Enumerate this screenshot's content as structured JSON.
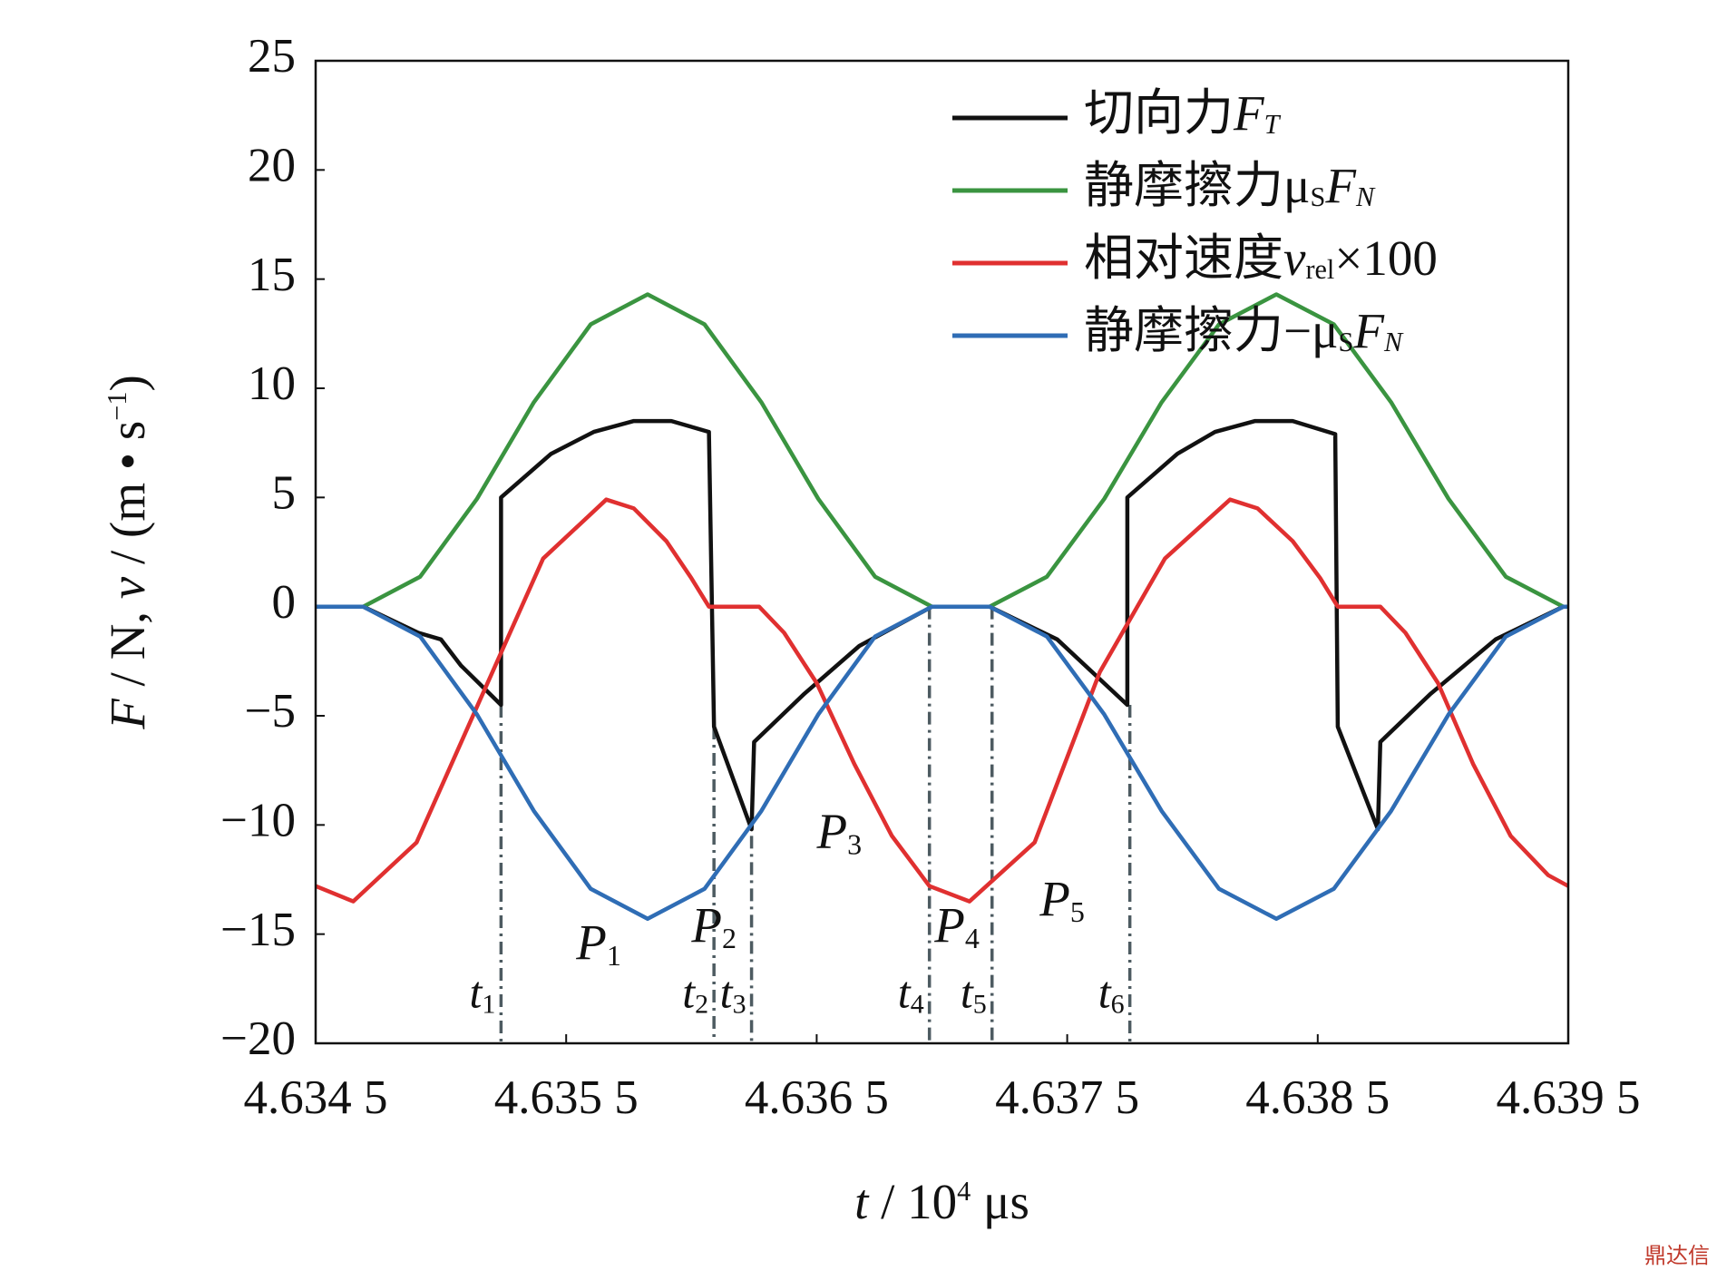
{
  "chart_data": {
    "type": "line",
    "xlabel": [
      {
        "text": "t",
        "style": "italic"
      },
      {
        "text": " / 10"
      },
      {
        "text": "4",
        "style": "sup"
      },
      {
        "text": " μs"
      }
    ],
    "ylabel": [
      {
        "text": "F",
        "style": "italic"
      },
      {
        "text": " / N, "
      },
      {
        "text": "v",
        "style": "italic"
      },
      {
        "text": " / (m • s"
      },
      {
        "text": "−1",
        "style": "sup"
      },
      {
        "text": ")"
      }
    ],
    "xlim": [
      4.6345,
      4.6395
    ],
    "ylim": [
      -20,
      25
    ],
    "xticks": [
      {
        "value": 4.6345,
        "label": "4.634 5"
      },
      {
        "value": 4.6355,
        "label": "4.635 5"
      },
      {
        "value": 4.6365,
        "label": "4.636 5"
      },
      {
        "value": 4.6375,
        "label": "4.637 5"
      },
      {
        "value": 4.6385,
        "label": "4.638 5"
      },
      {
        "value": 4.6395,
        "label": "4.639 5"
      }
    ],
    "yticks": [
      {
        "value": -20,
        "label": "−20"
      },
      {
        "value": -15,
        "label": "−15"
      },
      {
        "value": -10,
        "label": "−10"
      },
      {
        "value": -5,
        "label": "−5"
      },
      0,
      5,
      10,
      15,
      20,
      25
    ],
    "legend": "upper right",
    "series": [
      {
        "name": [
          {
            "text": "切向力"
          },
          {
            "text": "F",
            "style": "italic"
          },
          {
            "text": "T",
            "style": "sub-italic"
          }
        ],
        "color": "#111111",
        "x": [
          4.6345,
          4.63469,
          4.63491,
          4.635,
          4.63508,
          4.63524,
          4.63524,
          4.63544,
          4.63561,
          4.63577,
          4.63592,
          4.63607,
          4.63609,
          4.63624,
          4.63625,
          4.63645,
          4.63667,
          4.63696,
          4.63719,
          4.63746,
          4.63774,
          4.63774,
          4.63794,
          4.63809,
          4.63825,
          4.6384,
          4.63857,
          4.63858,
          4.63874,
          4.63875,
          4.63895,
          4.63921,
          4.63948,
          4.6395
        ],
        "values": [
          0,
          0,
          -1.2,
          -1.5,
          -2.7,
          -4.5,
          5,
          7,
          8,
          8.5,
          8.5,
          8,
          -5.5,
          -10.2,
          -6.2,
          -4,
          -1.8,
          0,
          0,
          -1.5,
          -4.5,
          5,
          7,
          8,
          8.5,
          8.5,
          7.9,
          -5.5,
          -10.2,
          -6.2,
          -4,
          -1.5,
          0,
          0
        ]
      },
      {
        "name": [
          {
            "text": "静摩擦力"
          },
          {
            "text": "μ"
          },
          {
            "text": "S",
            "style": "sub"
          },
          {
            "text": "F",
            "style": "italic"
          },
          {
            "text": "N",
            "style": "sub-italic"
          }
        ],
        "color": "#3a9440",
        "x": [
          4.6345,
          4.63469,
          4.634917,
          4.635144,
          4.635371,
          4.635598,
          4.635825,
          4.636052,
          4.636279,
          4.636506,
          4.636733,
          4.63696,
          4.63719,
          4.637419,
          4.637648,
          4.637877,
          4.638106,
          4.638335,
          4.638564,
          4.638793,
          4.639022,
          4.639251,
          4.63948,
          4.6395
        ],
        "values": [
          0,
          0,
          1.37,
          4.94,
          9.36,
          12.93,
          14.3,
          12.93,
          9.36,
          4.94,
          1.37,
          0,
          0,
          1.37,
          4.94,
          9.36,
          12.93,
          14.3,
          12.93,
          9.36,
          4.94,
          1.37,
          0,
          0
        ]
      },
      {
        "name": [
          {
            "text": "相对速度"
          },
          {
            "text": "v",
            "style": "italic"
          },
          {
            "text": "rel",
            "style": "sub"
          },
          {
            "text": "×100"
          }
        ],
        "color": "#e03030",
        "x": [
          4.6345,
          4.63465,
          4.634903,
          4.635155,
          4.635408,
          4.63566,
          4.63577,
          4.6359,
          4.636,
          4.63607,
          4.63627,
          4.63637,
          4.6365,
          4.63665,
          4.6368,
          4.63695,
          4.63711,
          4.63737,
          4.63763,
          4.63789,
          4.63815,
          4.63826,
          4.6384,
          4.63851,
          4.63858,
          4.63875,
          4.63885,
          4.63898,
          4.63912,
          4.63927,
          4.63942,
          4.6395
        ],
        "values": [
          -12.8,
          -13.5,
          -10.8,
          -4.3,
          2.2,
          4.9,
          4.5,
          3.0,
          1.3,
          0,
          0,
          -1.2,
          -3.5,
          -7.2,
          -10.5,
          -12.8,
          -13.5,
          -10.8,
          -3.0,
          2.2,
          4.9,
          4.5,
          3.0,
          1.3,
          0,
          0,
          -1.2,
          -3.5,
          -7.2,
          -10.5,
          -12.3,
          -12.8
        ]
      },
      {
        "name": [
          {
            "text": "静摩擦力−"
          },
          {
            "text": "μ"
          },
          {
            "text": "S",
            "style": "sub"
          },
          {
            "text": "F",
            "style": "italic"
          },
          {
            "text": "N",
            "style": "sub-italic"
          }
        ],
        "color": "#2f6db5",
        "x": [
          4.6345,
          4.63469,
          4.634917,
          4.635144,
          4.635371,
          4.635598,
          4.635825,
          4.636052,
          4.636279,
          4.636506,
          4.636733,
          4.63696,
          4.63719,
          4.637419,
          4.637648,
          4.637877,
          4.638106,
          4.638335,
          4.638564,
          4.638793,
          4.639022,
          4.639251,
          4.63948,
          4.6395
        ],
        "values": [
          0,
          0,
          -1.37,
          -4.94,
          -9.36,
          -12.93,
          -14.3,
          -12.93,
          -9.36,
          -4.94,
          -1.37,
          0,
          0,
          -1.37,
          -4.94,
          -9.36,
          -12.93,
          -14.3,
          -12.93,
          -9.36,
          -4.94,
          -1.37,
          0,
          0
        ]
      }
    ],
    "markers": [
      {
        "label": "t",
        "sub": "1",
        "x": 4.63524,
        "y": -4.5
      },
      {
        "label": "t",
        "sub": "2",
        "x": 4.63609,
        "y": -5.5
      },
      {
        "label": "t",
        "sub": "3",
        "x": 4.63624,
        "y": -10.5
      },
      {
        "label": "t",
        "sub": "4",
        "x": 4.63695,
        "y": 0
      },
      {
        "label": "t",
        "sub": "5",
        "x": 4.6372,
        "y": 0
      },
      {
        "label": "t",
        "sub": "6",
        "x": 4.63775,
        "y": -4.5
      }
    ],
    "marker_label_y": -17.9,
    "regions": [
      {
        "label": "P",
        "sub": "1",
        "x": 4.63563,
        "y": -15.6
      },
      {
        "label": "P",
        "sub": "2",
        "x": 4.63609,
        "y": -14.8
      },
      {
        "label": "P",
        "sub": "3",
        "x": 4.63659,
        "y": -10.5
      },
      {
        "label": "P",
        "sub": "4",
        "x": 4.63706,
        "y": -14.8
      },
      {
        "label": "P",
        "sub": "5",
        "x": 4.63748,
        "y": -13.6
      }
    ],
    "watermark": "鼎达信"
  }
}
